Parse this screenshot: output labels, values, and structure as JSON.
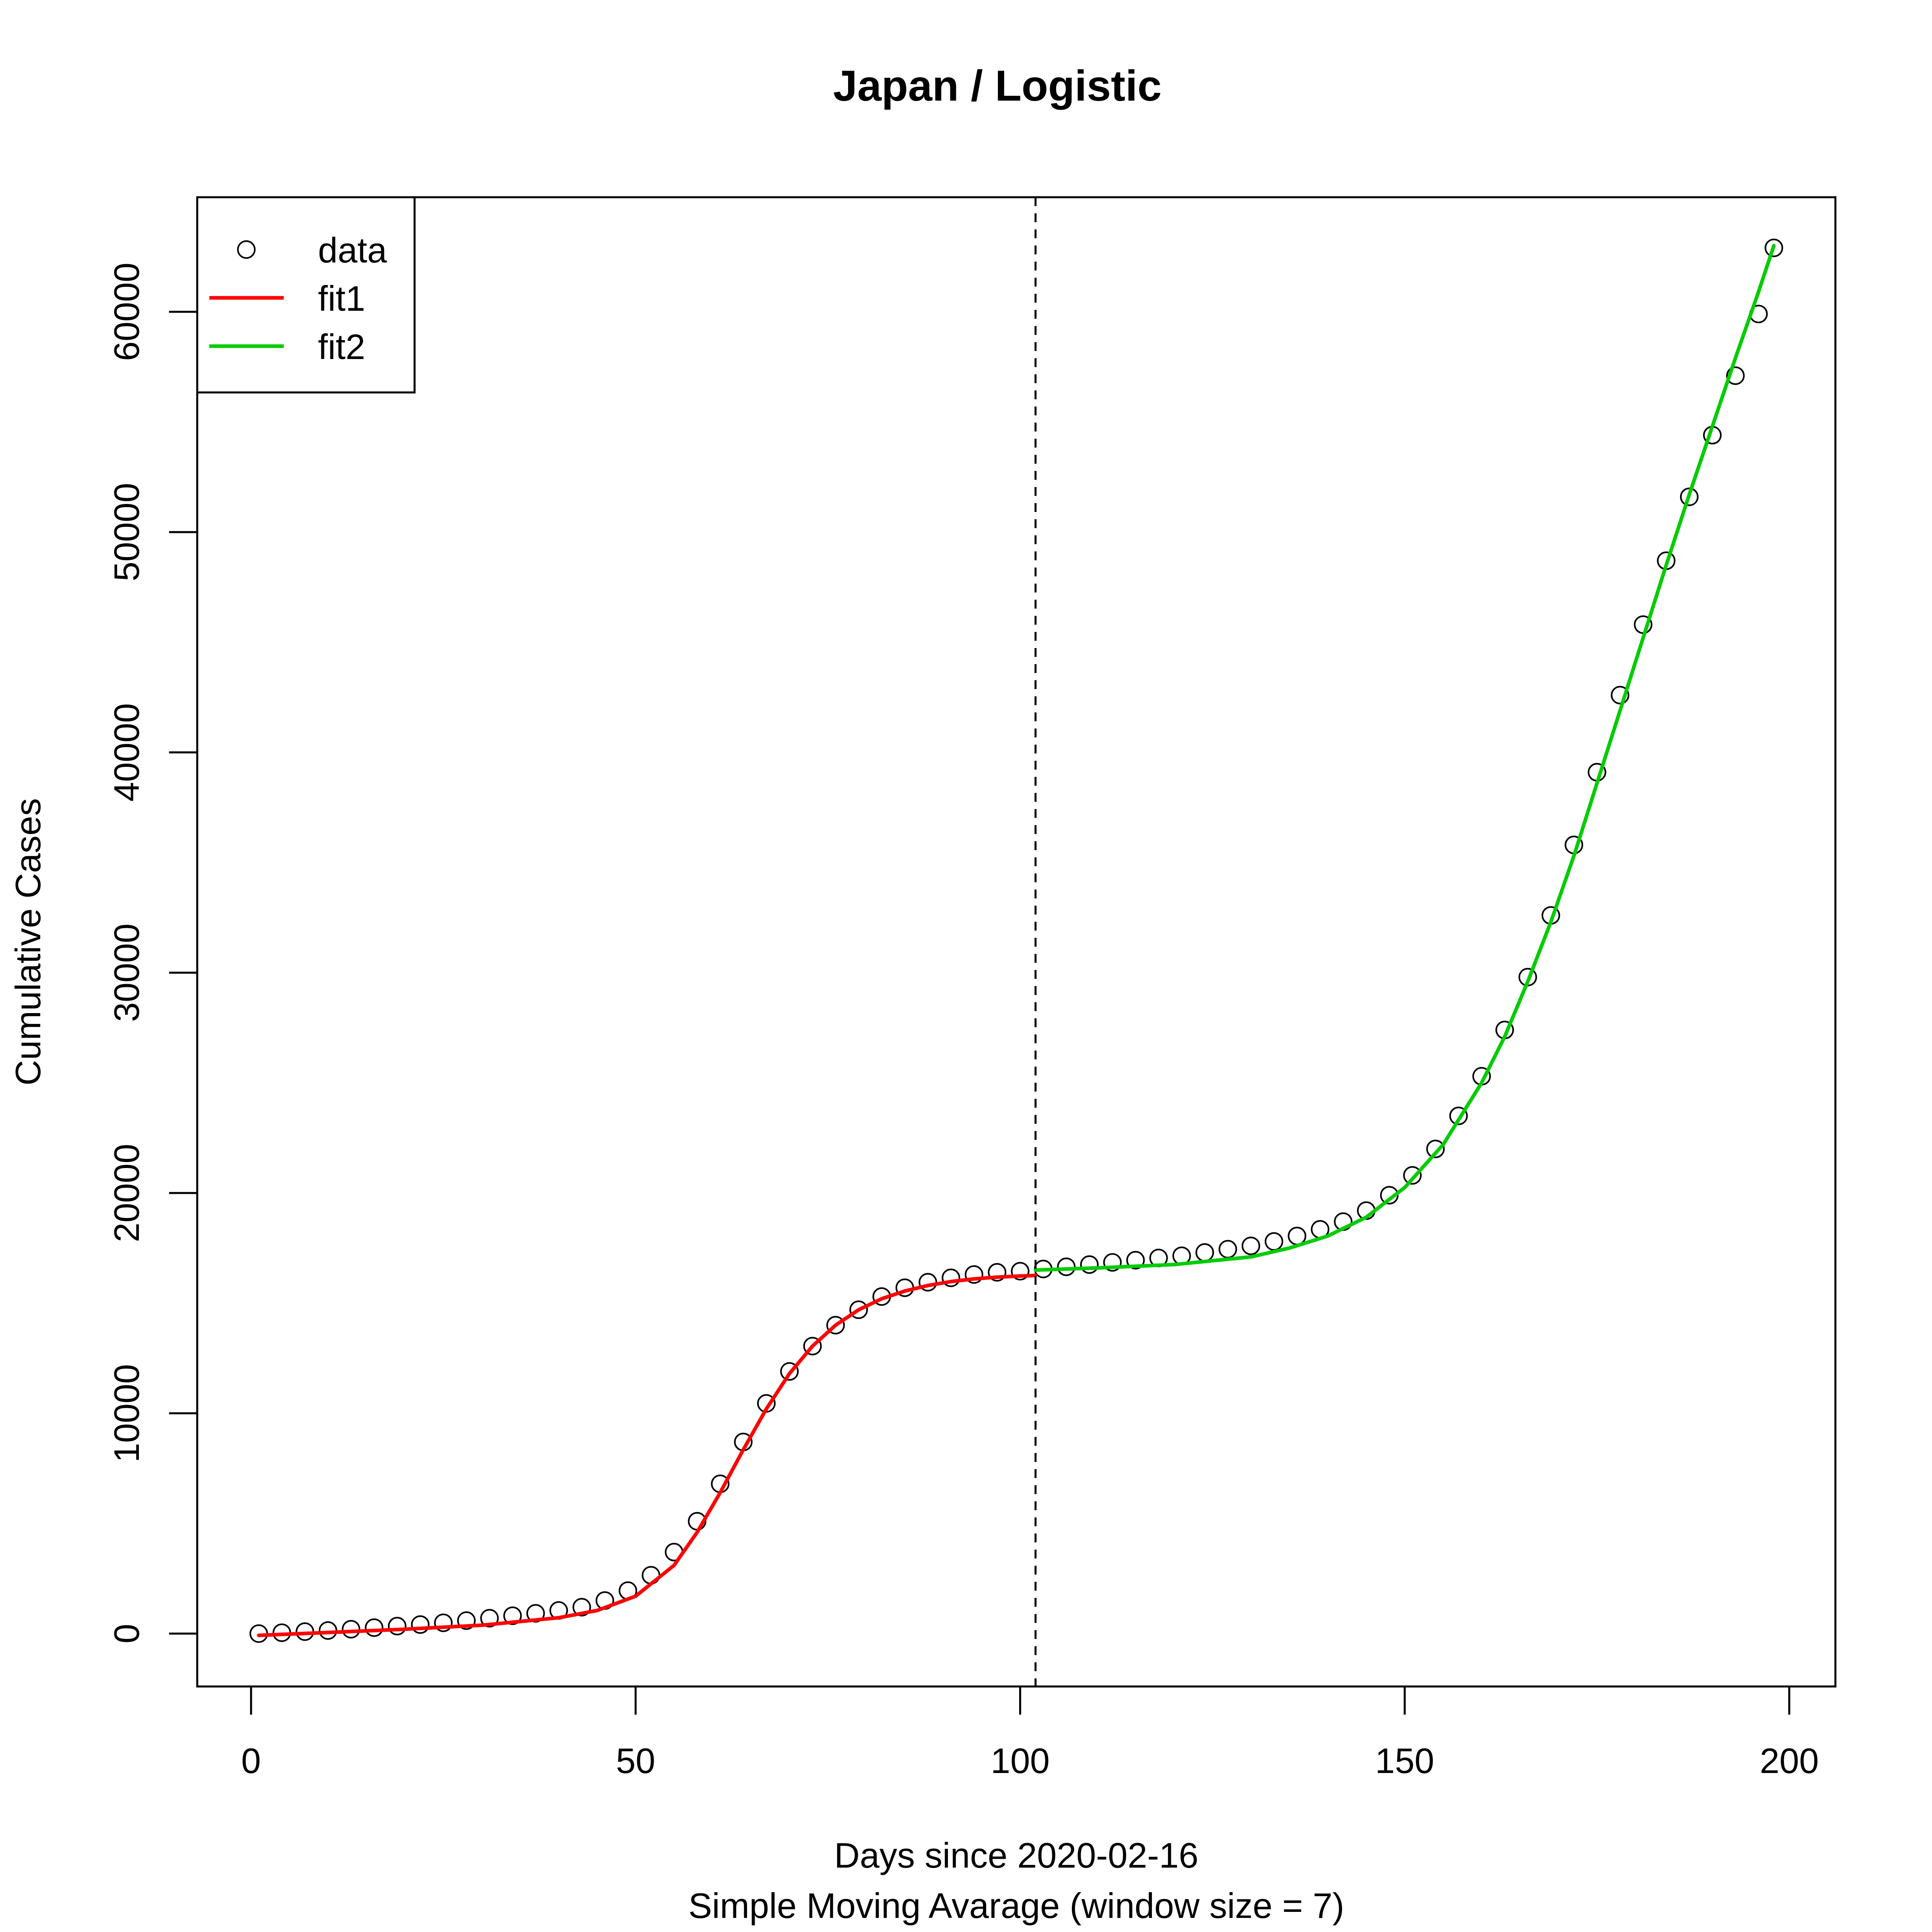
{
  "chart_data": {
    "type": "line",
    "title": "Japan / Logistic",
    "xlabel": "Days since 2020-02-16",
    "xlabel2": "Simple Moving Avarage (window size = 7)",
    "ylabel": "Cumulative Cases",
    "xlim": [
      -7,
      206
    ],
    "ylim": [
      -2400,
      65200
    ],
    "x_ticks": [
      0,
      50,
      100,
      150,
      200
    ],
    "y_ticks": [
      0,
      10000,
      20000,
      30000,
      40000,
      50000,
      60000
    ],
    "x_tick_labels": [
      "0",
      "50",
      "100",
      "150",
      "200"
    ],
    "y_tick_labels": [
      "0",
      "10000",
      "20000",
      "30000",
      "40000",
      "50000",
      "60000"
    ],
    "split_x": 102,
    "legend": {
      "position": "top-left",
      "entries": [
        {
          "label": "data",
          "style": "point",
          "color": "#000000"
        },
        {
          "label": "fit1",
          "style": "line",
          "color": "#ff0000"
        },
        {
          "label": "fit2",
          "style": "line",
          "color": "#00cc00"
        }
      ]
    },
    "data_points": {
      "x": [
        1,
        4,
        7,
        10,
        13,
        16,
        19,
        22,
        25,
        28,
        31,
        34,
        37,
        40,
        43,
        46,
        49,
        52,
        55,
        58,
        61,
        64,
        67,
        70,
        73,
        76,
        79,
        82,
        85,
        88,
        91,
        94,
        97,
        100,
        103,
        106,
        109,
        112,
        115,
        118,
        121,
        124,
        127,
        130,
        133,
        136,
        139,
        142,
        145,
        148,
        151,
        154,
        157,
        160,
        163,
        166,
        169,
        172,
        175,
        178,
        181,
        184,
        187,
        190,
        193,
        196,
        198
      ],
      "y": [
        0,
        40,
        90,
        140,
        200,
        270,
        340,
        410,
        490,
        590,
        700,
        810,
        920,
        1050,
        1200,
        1500,
        1950,
        2650,
        3700,
        5100,
        6800,
        8700,
        10450,
        11900,
        13050,
        14000,
        14700,
        15300,
        15700,
        15950,
        16150,
        16300,
        16400,
        16450,
        16550,
        16650,
        16750,
        16850,
        16950,
        17050,
        17150,
        17300,
        17450,
        17600,
        17800,
        18050,
        18350,
        18700,
        19200,
        19900,
        20800,
        22000,
        23500,
        25300,
        27400,
        29800,
        32600,
        35800,
        39100,
        42600,
        45800,
        48700,
        51600,
        54400,
        57100,
        59900,
        62900
      ]
    },
    "series": [
      {
        "name": "fit1",
        "color": "#ff0000",
        "x": [
          1,
          10,
          20,
          30,
          40,
          45,
          50,
          55,
          58,
          61,
          64,
          67,
          70,
          73,
          76,
          79,
          82,
          85,
          88,
          91,
          94,
          97,
          100,
          102
        ],
        "y": [
          -80,
          50,
          200,
          380,
          720,
          1050,
          1700,
          3100,
          4600,
          6400,
          8350,
          10200,
          11800,
          13050,
          14000,
          14700,
          15200,
          15550,
          15800,
          15980,
          16100,
          16180,
          16230,
          16260
        ]
      },
      {
        "name": "fit2",
        "color": "#00cc00",
        "x": [
          102,
          110,
          120,
          130,
          135,
          140,
          145,
          150,
          155,
          160,
          163,
          166,
          169,
          172,
          175,
          178,
          181,
          184,
          187,
          190,
          193,
          196,
          198
        ],
        "y": [
          16500,
          16600,
          16750,
          17100,
          17500,
          18050,
          18900,
          20250,
          22200,
          25000,
          27100,
          29600,
          32300,
          35300,
          38600,
          41900,
          45200,
          48500,
          51700,
          54800,
          57900,
          60900,
          63000
        ]
      }
    ]
  }
}
